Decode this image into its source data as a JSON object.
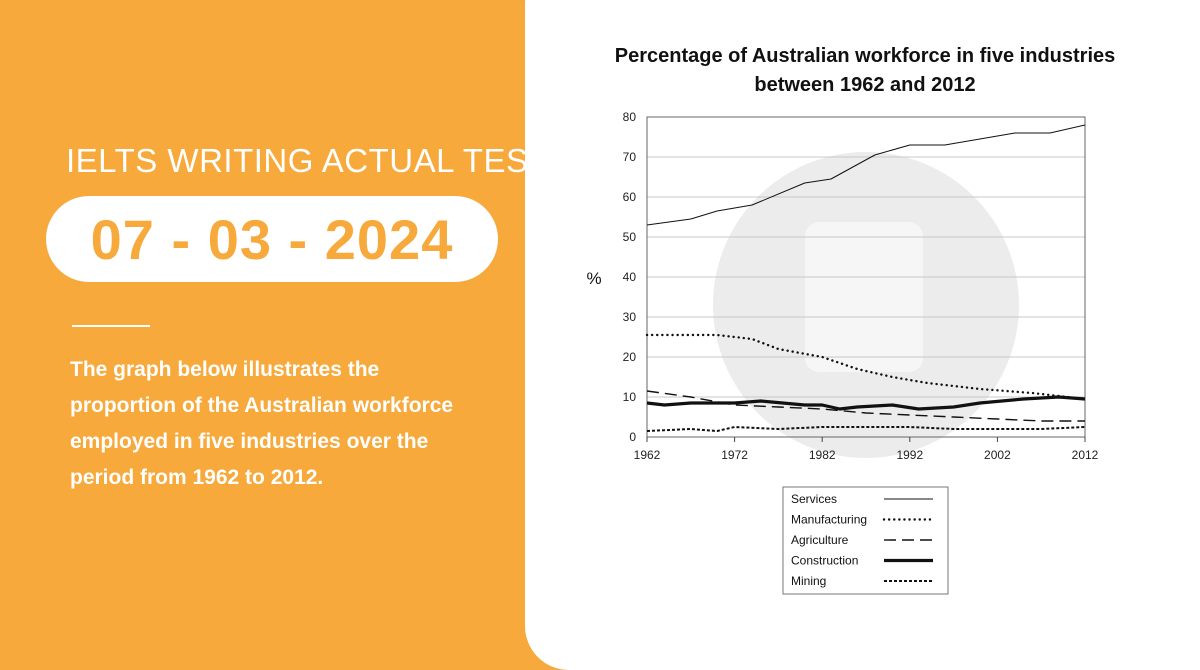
{
  "headline": "IELTS WRITING ACTUAL TEST",
  "date": "07 - 03 - 2024",
  "description": "The graph below illustrates the proportion of the Australian workforce employed in five industries over the period from 1962 to 2012.",
  "colors": {
    "accent": "#F7A93B",
    "card": "#ffffff",
    "ink": "#111111"
  },
  "chart_data": {
    "type": "line",
    "title": "Percentage of Australian workforce in five industries between 1962 and 2012",
    "title_lines": [
      "Percentage of Australian workforce in five industries",
      "between 1962 and 2012"
    ],
    "xlabel": "",
    "ylabel": "%",
    "xlim": [
      1962,
      2012
    ],
    "ylim": [
      0,
      80
    ],
    "x_ticks": [
      1962,
      1972,
      1982,
      1992,
      2002,
      2012
    ],
    "y_ticks": [
      0,
      10,
      20,
      30,
      40,
      50,
      60,
      70,
      80
    ],
    "grid": "horizontal",
    "legend_position": "bottom-right",
    "series": [
      {
        "name": "Services",
        "style": "solid",
        "x": [
          1962,
          1967,
          1970,
          1974,
          1980,
          1983,
          1988,
          1992,
          1996,
          2000,
          2004,
          2008,
          2012
        ],
        "y": [
          53,
          54.5,
          56.5,
          58,
          63.5,
          64.5,
          70.5,
          73,
          73,
          74.5,
          76,
          76,
          78
        ]
      },
      {
        "name": "Manufacturing",
        "style": "dotted",
        "x": [
          1962,
          1965,
          1970,
          1974,
          1977,
          1982,
          1986,
          1990,
          1994,
          2000,
          2006,
          2012
        ],
        "y": [
          25.5,
          25.5,
          25.5,
          24.5,
          22,
          20,
          17,
          15,
          13.5,
          12,
          11,
          9.5
        ]
      },
      {
        "name": "Agriculture",
        "style": "dashed",
        "x": [
          1962,
          1967,
          1972,
          1977,
          1982,
          1987,
          1992,
          1997,
          2002,
          2007,
          2012
        ],
        "y": [
          11.5,
          10,
          8,
          7.5,
          7,
          6,
          5.5,
          5,
          4.5,
          4,
          4
        ]
      },
      {
        "name": "Construction",
        "style": "thick",
        "x": [
          1962,
          1964,
          1967,
          1972,
          1975,
          1980,
          1982,
          1984,
          1986,
          1990,
          1993,
          1997,
          2000,
          2005,
          2009,
          2012
        ],
        "y": [
          8.5,
          8,
          8.5,
          8.5,
          9,
          8,
          8,
          7,
          7.5,
          8,
          7,
          7.5,
          8.5,
          9.5,
          10,
          9.5
        ]
      },
      {
        "name": "Mining",
        "style": "short-dashed",
        "x": [
          1962,
          1967,
          1970,
          1972,
          1977,
          1982,
          1987,
          1992,
          1997,
          2002,
          2007,
          2012
        ],
        "y": [
          1.5,
          2,
          1.5,
          2.5,
          2,
          2.5,
          2.5,
          2.5,
          2,
          2,
          2,
          2.5
        ]
      }
    ]
  }
}
